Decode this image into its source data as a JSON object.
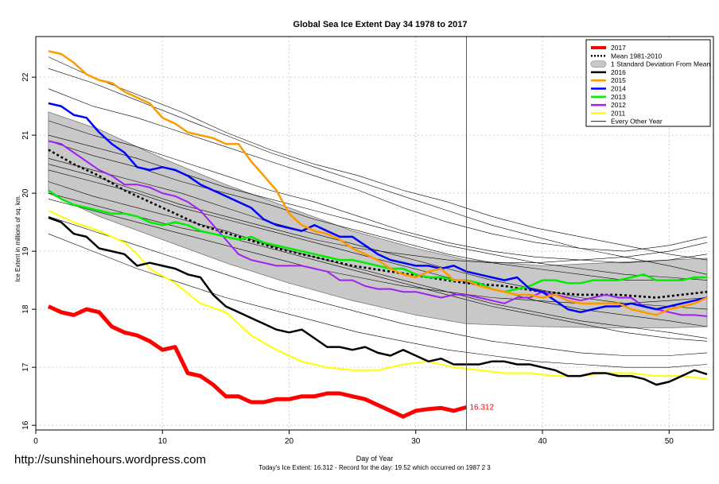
{
  "chart_data": {
    "type": "line",
    "title": "Global Sea Ice Extent Day 34 1978 to 2017",
    "xlabel": "Day of Year",
    "ylabel": "Ice Extent in millions of sq. km.",
    "xlim": [
      0,
      53.5
    ],
    "ylim": [
      15.92,
      22.7
    ],
    "x_ticks": [
      0,
      10,
      20,
      30,
      40,
      50
    ],
    "y_ticks": [
      16,
      17,
      18,
      19,
      20,
      21,
      22
    ],
    "grid": true,
    "legend_position": "top-right",
    "current_day": 34,
    "caption": "Today's Ice Extent: 16.312  - Record for the day: 19.52 which occurred on 1987 2 3",
    "watermark": "http://sunshinehours.wordpress.com",
    "end_label": "16.312",
    "legend": [
      {
        "label": "2017",
        "color": "#ff0000",
        "style": "thick"
      },
      {
        "label": "Mean 1981-2010",
        "color": "#000000",
        "style": "dotted"
      },
      {
        "label": "1 Standard Deviation From Mean",
        "color": "#c8c8c8",
        "style": "band"
      },
      {
        "label": "2016",
        "color": "#000000",
        "style": "medium"
      },
      {
        "label": "2015",
        "color": "#ff9900",
        "style": "medium"
      },
      {
        "label": "2014",
        "color": "#0000ff",
        "style": "medium"
      },
      {
        "label": "2013",
        "color": "#00ee00",
        "style": "medium"
      },
      {
        "label": "2012",
        "color": "#a020f0",
        "style": "medium"
      },
      {
        "label": "2011",
        "color": "#ffff00",
        "style": "medium"
      },
      {
        "label": "Every Other Year",
        "color": "#000000",
        "style": "thin"
      }
    ],
    "band": {
      "x": [
        1,
        5,
        10,
        15,
        20,
        25,
        30,
        34,
        40,
        45,
        50,
        53
      ],
      "upper": [
        21.4,
        21.1,
        20.6,
        20.15,
        19.75,
        19.35,
        19.05,
        18.85,
        18.75,
        18.8,
        18.85,
        18.88
      ],
      "lower": [
        20.0,
        19.6,
        19.2,
        18.8,
        18.45,
        18.15,
        17.9,
        17.75,
        17.7,
        17.68,
        17.68,
        17.7
      ]
    },
    "mean": {
      "x": [
        1,
        3,
        5,
        7,
        10,
        13,
        16,
        19,
        22,
        25,
        28,
        31,
        34,
        37,
        40,
        43,
        46,
        49,
        53
      ],
      "y": [
        20.75,
        20.5,
        20.3,
        20.05,
        19.75,
        19.45,
        19.25,
        19.05,
        18.9,
        18.75,
        18.65,
        18.55,
        18.45,
        18.4,
        18.3,
        18.25,
        18.25,
        18.2,
        18.3
      ]
    },
    "other_years": [
      {
        "y": [
          22.35,
          22.0,
          21.7,
          21.4,
          21.05,
          20.75,
          20.5,
          20.3,
          20.05,
          19.85,
          19.6,
          19.4,
          19.25,
          19.1,
          18.95,
          18.85
        ]
      },
      {
        "y": [
          22.15,
          21.9,
          21.6,
          21.3,
          21.0,
          20.7,
          20.45,
          20.2,
          19.95,
          19.7,
          19.45,
          19.25,
          19.05,
          18.9,
          18.75,
          18.6
        ]
      },
      {
        "y": [
          21.8,
          21.5,
          21.3,
          21.05,
          20.8,
          20.55,
          20.3,
          20.05,
          19.75,
          19.5,
          19.3,
          19.15,
          19.05,
          19.0,
          19.1,
          19.25
        ]
      },
      {
        "y": [
          21.25,
          21.0,
          20.8,
          20.55,
          20.3,
          20.05,
          19.85,
          19.6,
          19.35,
          19.15,
          19.0,
          18.9,
          18.85,
          18.8,
          18.85,
          18.95
        ]
      },
      {
        "y": [
          20.9,
          20.65,
          20.45,
          20.2,
          20.0,
          19.8,
          19.55,
          19.35,
          19.15,
          18.95,
          18.8,
          18.7,
          18.6,
          18.5,
          18.5,
          18.55
        ]
      },
      {
        "y": [
          20.6,
          20.4,
          20.2,
          20.0,
          19.75,
          19.5,
          19.3,
          19.1,
          18.9,
          18.7,
          18.5,
          18.35,
          18.2,
          18.1,
          18.05,
          18.0
        ]
      },
      {
        "y": [
          20.4,
          20.2,
          20.0,
          19.75,
          19.55,
          19.35,
          19.15,
          18.95,
          18.75,
          18.55,
          18.35,
          18.15,
          18.0,
          17.9,
          17.8,
          17.7
        ]
      },
      {
        "y": [
          20.2,
          19.95,
          19.75,
          19.55,
          19.35,
          19.1,
          18.9,
          18.7,
          18.5,
          18.3,
          18.1,
          17.95,
          17.8,
          17.7,
          17.6,
          17.5
        ]
      },
      {
        "y": [
          19.9,
          19.7,
          19.5,
          19.3,
          19.1,
          18.9,
          18.7,
          18.55,
          18.4,
          18.3,
          18.2,
          18.15,
          18.1,
          18.1,
          18.15,
          18.2
        ]
      },
      {
        "y": [
          19.6,
          19.35,
          19.1,
          18.85,
          18.6,
          18.35,
          18.15,
          17.95,
          17.75,
          17.6,
          17.45,
          17.35,
          17.25,
          17.2,
          17.2,
          17.25
        ]
      },
      {
        "y": [
          19.3,
          19.0,
          18.7,
          18.45,
          18.2,
          18.0,
          17.8,
          17.6,
          17.45,
          17.3,
          17.2,
          17.1,
          17.05,
          17.0,
          17.0,
          17.05
        ]
      },
      {
        "y": [
          20.5,
          20.3,
          20.05,
          19.8,
          19.6,
          19.4,
          19.2,
          19.05,
          18.95,
          18.85,
          18.8,
          18.8,
          18.85,
          18.9,
          19.0,
          19.15
        ]
      },
      {
        "y": [
          21.0,
          20.8,
          20.6,
          20.35,
          20.1,
          19.9,
          19.7,
          19.5,
          19.3,
          19.1,
          18.95,
          18.8,
          18.7,
          18.6,
          18.55,
          18.5
        ]
      },
      {
        "y": [
          20.0,
          19.8,
          19.6,
          19.4,
          19.25,
          19.05,
          18.85,
          18.65,
          18.45,
          18.25,
          18.05,
          17.9,
          17.75,
          17.6,
          17.5,
          17.45
        ]
      }
    ],
    "other_years_x": [
      1,
      4.5,
      8,
      11.5,
      15,
      18.5,
      22,
      25.5,
      29,
      32.5,
      36,
      39.5,
      43,
      46.5,
      50,
      53
    ],
    "series": [
      {
        "name": "2011",
        "color": "#ffff00",
        "width": 2,
        "x": [
          1,
          3,
          5,
          7,
          8,
          9,
          11,
          13,
          15,
          17,
          19,
          21,
          23,
          25,
          27,
          29,
          31,
          33,
          35,
          37,
          39,
          41,
          43,
          45,
          47,
          49,
          51,
          53
        ],
        "y": [
          19.7,
          19.5,
          19.35,
          19.15,
          18.95,
          18.7,
          18.45,
          18.1,
          17.95,
          17.55,
          17.3,
          17.1,
          17.0,
          16.95,
          16.95,
          17.05,
          17.1,
          17.0,
          16.95,
          16.9,
          16.9,
          16.85,
          16.85,
          16.9,
          16.9,
          16.85,
          16.85,
          16.8
        ]
      },
      {
        "name": "2012",
        "color": "#a020f0",
        "width": 2,
        "x": [
          1,
          2,
          3,
          4,
          5,
          6,
          7,
          8,
          9,
          10,
          11,
          12,
          13,
          14,
          15,
          16,
          17,
          18,
          19,
          20,
          21,
          22,
          23,
          24,
          25,
          26,
          27,
          28,
          29,
          30,
          31,
          32,
          33,
          34,
          35,
          36,
          37,
          38,
          39,
          40,
          41,
          42,
          43,
          44,
          45,
          46,
          47,
          48,
          49,
          50,
          51,
          52,
          53
        ],
        "y": [
          20.9,
          20.85,
          20.7,
          20.55,
          20.4,
          20.3,
          20.15,
          20.15,
          20.1,
          20.0,
          19.95,
          19.85,
          19.7,
          19.45,
          19.2,
          18.95,
          18.85,
          18.8,
          18.75,
          18.75,
          18.75,
          18.7,
          18.65,
          18.5,
          18.5,
          18.4,
          18.35,
          18.35,
          18.3,
          18.3,
          18.25,
          18.2,
          18.25,
          18.25,
          18.2,
          18.15,
          18.1,
          18.2,
          18.2,
          18.3,
          18.25,
          18.2,
          18.15,
          18.2,
          18.25,
          18.2,
          18.2,
          18.05,
          18.0,
          17.95,
          17.9,
          17.9,
          17.88
        ]
      },
      {
        "name": "2013",
        "color": "#00ee00",
        "width": 2.5,
        "x": [
          1,
          2,
          3,
          4,
          5,
          6,
          7,
          8,
          9,
          10,
          11,
          12,
          13,
          14,
          15,
          16,
          17,
          18,
          19,
          20,
          21,
          22,
          23,
          24,
          25,
          26,
          27,
          28,
          29,
          30,
          31,
          32,
          33,
          34,
          35,
          36,
          37,
          38,
          39,
          40,
          41,
          42,
          43,
          44,
          45,
          46,
          47,
          48,
          49,
          50,
          51,
          52,
          53
        ],
        "y": [
          20.05,
          19.9,
          19.8,
          19.75,
          19.7,
          19.65,
          19.65,
          19.6,
          19.5,
          19.45,
          19.5,
          19.45,
          19.35,
          19.3,
          19.25,
          19.2,
          19.25,
          19.15,
          19.1,
          19.05,
          19.0,
          18.95,
          18.9,
          18.85,
          18.85,
          18.8,
          18.75,
          18.7,
          18.7,
          18.6,
          18.55,
          18.55,
          18.5,
          18.5,
          18.45,
          18.35,
          18.3,
          18.35,
          18.4,
          18.5,
          18.5,
          18.45,
          18.45,
          18.5,
          18.5,
          18.5,
          18.55,
          18.6,
          18.5,
          18.5,
          18.5,
          18.55,
          18.55
        ]
      },
      {
        "name": "2014",
        "color": "#0000ff",
        "width": 2.5,
        "x": [
          1,
          2,
          3,
          4,
          5,
          6,
          7,
          8,
          9,
          10,
          11,
          12,
          13,
          14,
          15,
          16,
          17,
          18,
          19,
          20,
          21,
          22,
          23,
          24,
          25,
          26,
          27,
          28,
          29,
          30,
          31,
          32,
          33,
          34,
          35,
          36,
          37,
          38,
          39,
          40,
          41,
          42,
          43,
          44,
          45,
          46,
          47,
          48,
          49,
          50,
          51,
          52,
          53
        ],
        "y": [
          21.55,
          21.5,
          21.35,
          21.3,
          21.05,
          20.85,
          20.7,
          20.45,
          20.4,
          20.45,
          20.4,
          20.3,
          20.15,
          20.05,
          19.95,
          19.85,
          19.75,
          19.55,
          19.45,
          19.4,
          19.35,
          19.45,
          19.35,
          19.25,
          19.25,
          19.1,
          18.95,
          18.85,
          18.8,
          18.75,
          18.75,
          18.7,
          18.75,
          18.65,
          18.6,
          18.55,
          18.5,
          18.55,
          18.35,
          18.3,
          18.15,
          18.0,
          17.95,
          18.0,
          18.05,
          18.05,
          18.1,
          18.05,
          18.0,
          18.05,
          18.1,
          18.15,
          18.2
        ]
      },
      {
        "name": "2015",
        "color": "#ff9900",
        "width": 2.5,
        "x": [
          1,
          2,
          3,
          4,
          5,
          6,
          7,
          8,
          9,
          10,
          11,
          12,
          13,
          14,
          15,
          16,
          17,
          18,
          19,
          20,
          21,
          22,
          23,
          24,
          25,
          26,
          27,
          28,
          29,
          30,
          31,
          32,
          33,
          34,
          35,
          36,
          37,
          38,
          39,
          40,
          41,
          42,
          43,
          44,
          45,
          46,
          47,
          48,
          49,
          50,
          51,
          52,
          53
        ],
        "y": [
          22.45,
          22.4,
          22.25,
          22.05,
          21.95,
          21.9,
          21.75,
          21.65,
          21.55,
          21.3,
          21.2,
          21.05,
          21.0,
          20.95,
          20.85,
          20.85,
          20.55,
          20.3,
          20.05,
          19.65,
          19.45,
          19.35,
          19.3,
          19.2,
          19.05,
          18.95,
          18.85,
          18.7,
          18.6,
          18.55,
          18.65,
          18.7,
          18.5,
          18.5,
          18.4,
          18.35,
          18.3,
          18.25,
          18.25,
          18.2,
          18.25,
          18.15,
          18.1,
          18.1,
          18.1,
          18.1,
          18.0,
          17.95,
          17.9,
          18.0,
          18.05,
          18.1,
          18.2
        ]
      },
      {
        "name": "2016",
        "color": "#000000",
        "width": 2.5,
        "x": [
          1,
          2,
          3,
          4,
          5,
          6,
          7,
          8,
          9,
          10,
          11,
          12,
          13,
          14,
          15,
          16,
          17,
          18,
          19,
          20,
          21,
          22,
          23,
          24,
          25,
          26,
          27,
          28,
          29,
          30,
          31,
          32,
          33,
          34,
          35,
          36,
          37,
          38,
          39,
          40,
          41,
          42,
          43,
          44,
          45,
          46,
          47,
          48,
          49,
          50,
          51,
          52,
          53
        ],
        "y": [
          19.58,
          19.5,
          19.3,
          19.25,
          19.05,
          19.0,
          18.95,
          18.75,
          18.8,
          18.75,
          18.7,
          18.6,
          18.55,
          18.25,
          18.05,
          17.95,
          17.85,
          17.75,
          17.65,
          17.6,
          17.65,
          17.5,
          17.35,
          17.35,
          17.3,
          17.35,
          17.25,
          17.2,
          17.3,
          17.2,
          17.1,
          17.15,
          17.05,
          17.05,
          17.05,
          17.1,
          17.1,
          17.05,
          17.05,
          17.0,
          16.95,
          16.85,
          16.85,
          16.9,
          16.9,
          16.85,
          16.85,
          16.8,
          16.7,
          16.75,
          16.85,
          16.95,
          16.88
        ]
      },
      {
        "name": "2017",
        "color": "#ff0000",
        "width": 5,
        "x": [
          1,
          2,
          3,
          4,
          5,
          6,
          7,
          8,
          9,
          10,
          11,
          12,
          13,
          14,
          15,
          16,
          17,
          18,
          19,
          20,
          21,
          22,
          23,
          24,
          25,
          26,
          27,
          28,
          29,
          30,
          31,
          32,
          33,
          34
        ],
        "y": [
          18.05,
          17.95,
          17.9,
          18.0,
          17.95,
          17.7,
          17.6,
          17.55,
          17.45,
          17.3,
          17.35,
          16.9,
          16.85,
          16.7,
          16.5,
          16.5,
          16.4,
          16.4,
          16.45,
          16.45,
          16.5,
          16.5,
          16.55,
          16.55,
          16.5,
          16.45,
          16.35,
          16.25,
          16.15,
          16.25,
          16.28,
          16.3,
          16.25,
          16.312
        ]
      }
    ]
  }
}
